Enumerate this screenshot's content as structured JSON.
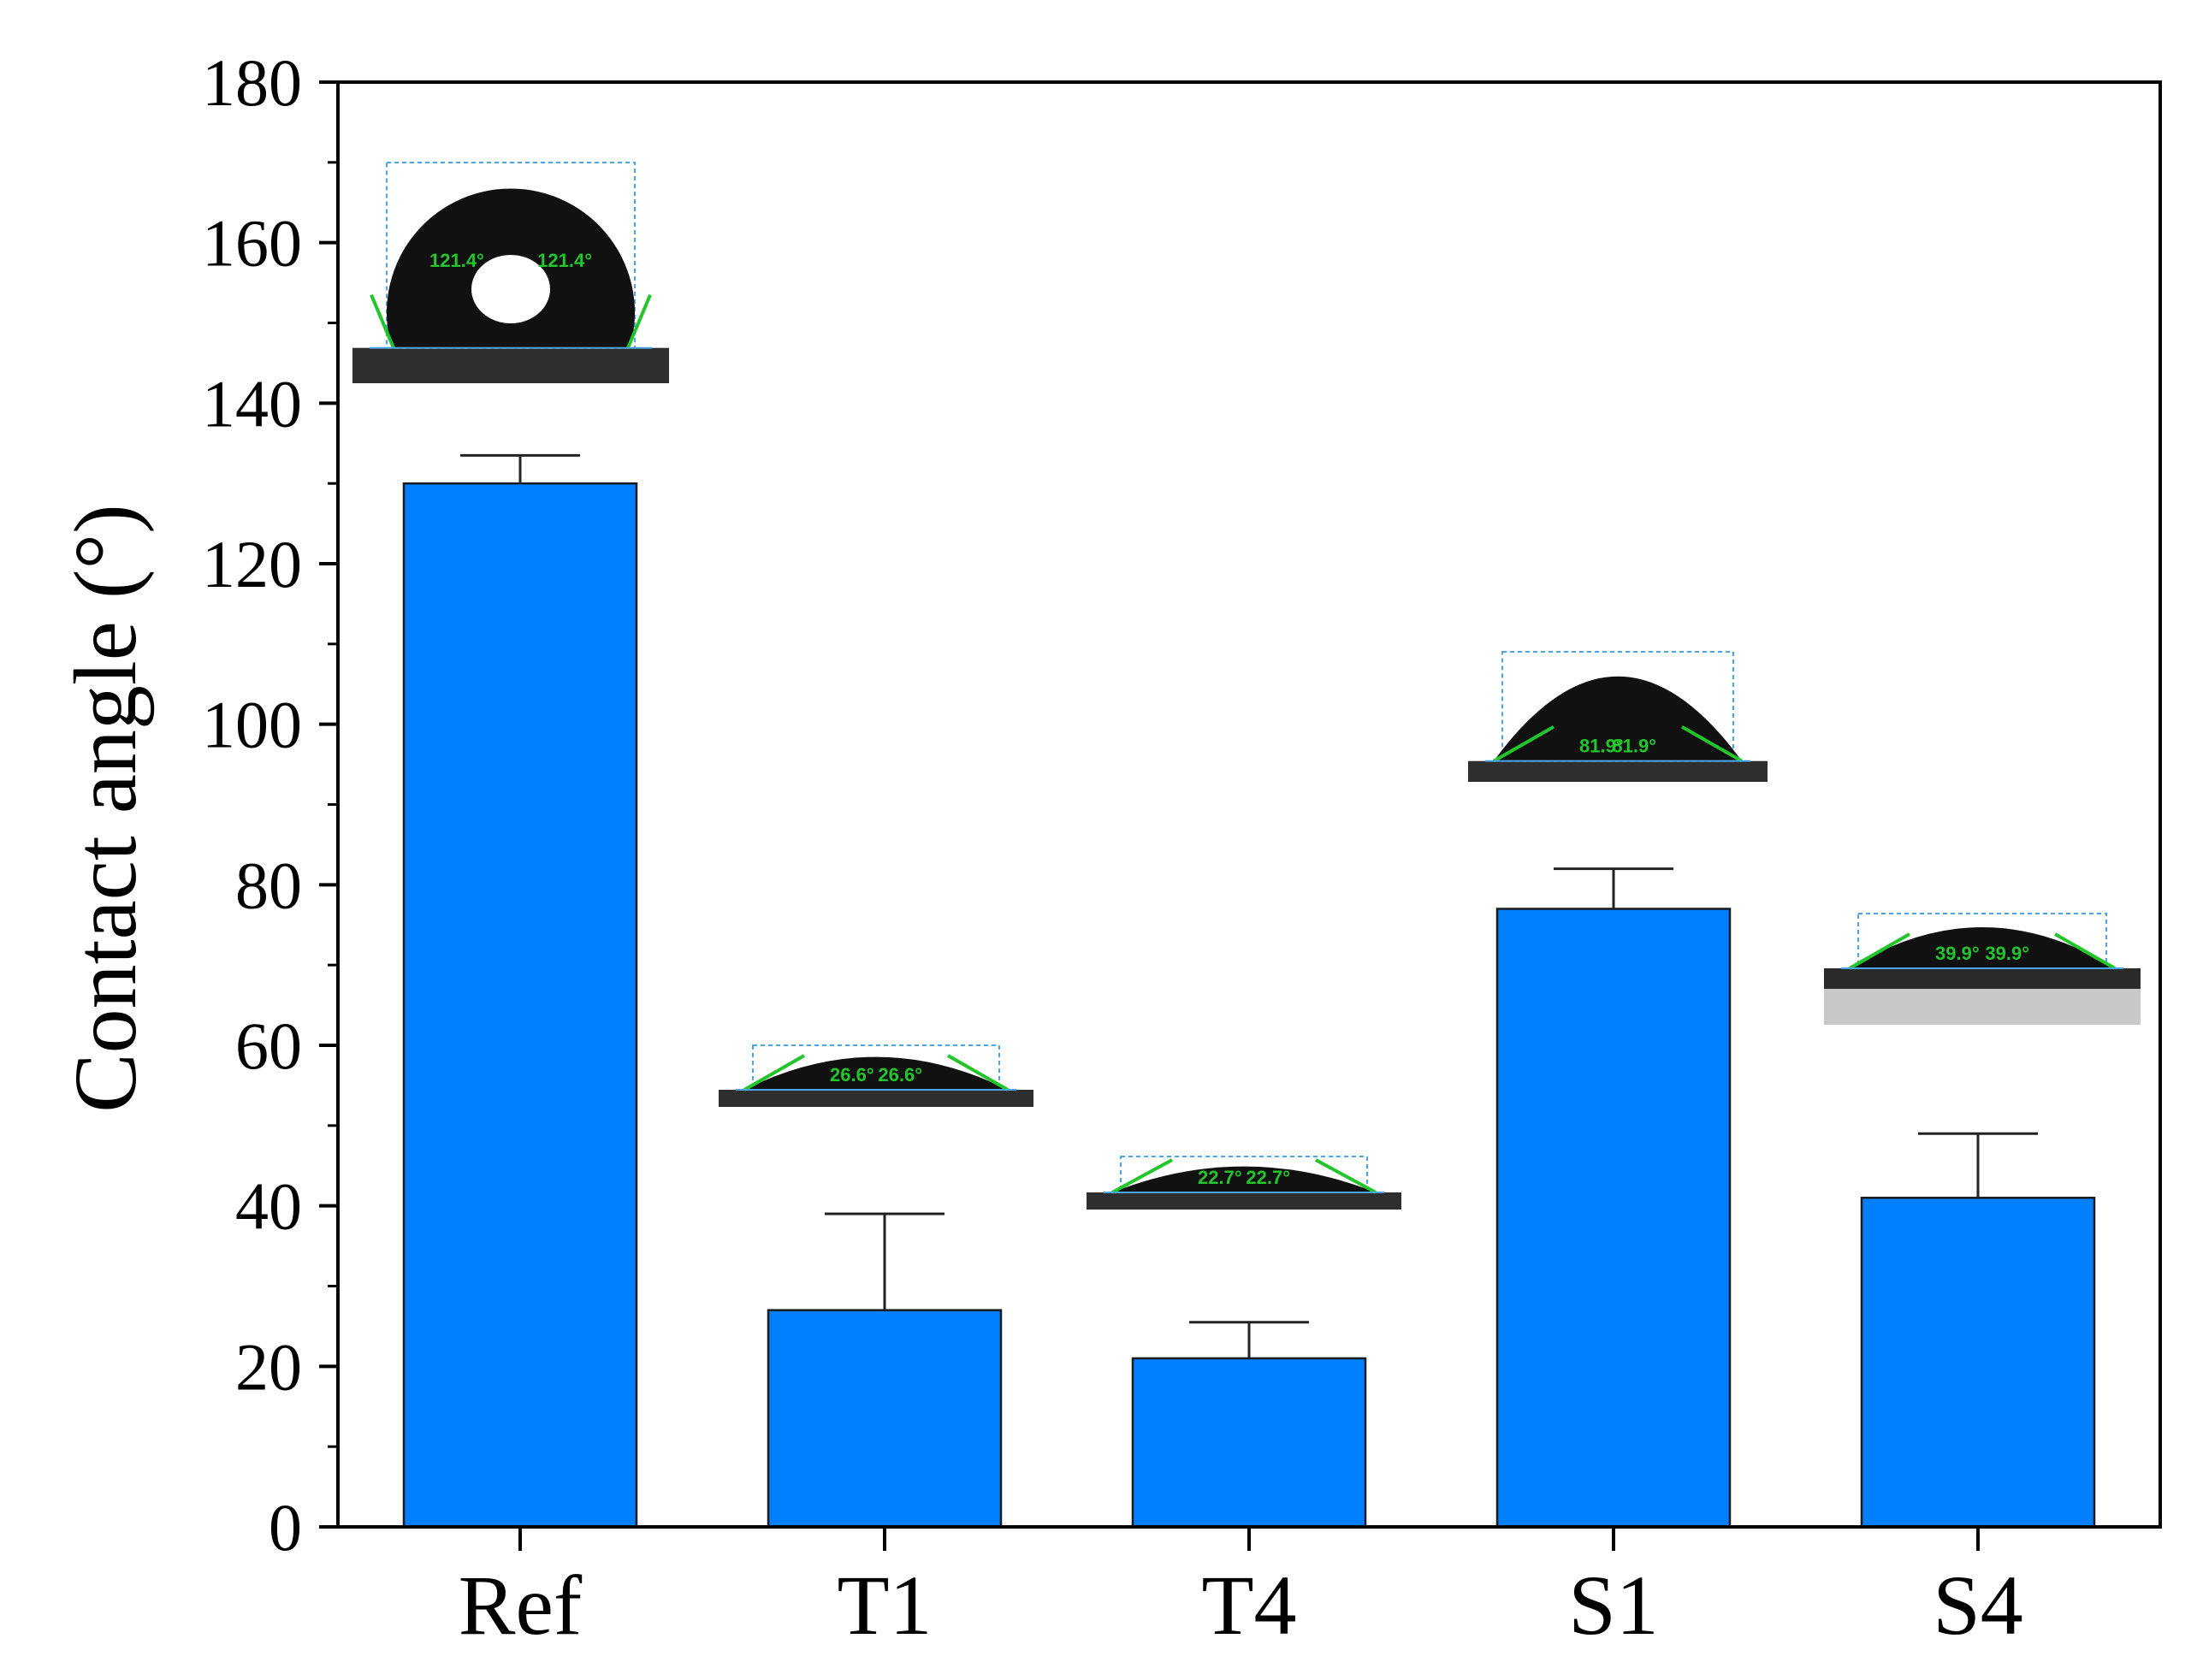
{
  "chart_data": {
    "type": "bar",
    "categories": [
      "Ref",
      "T1",
      "T4",
      "S1",
      "S4"
    ],
    "values": [
      130,
      27,
      21,
      77,
      41
    ],
    "errors": [
      3.5,
      12,
      4.5,
      5,
      8
    ],
    "ylabel": "Contact angle (°)",
    "ylim": [
      0,
      180
    ],
    "yticks": [
      0,
      20,
      40,
      60,
      80,
      100,
      120,
      140,
      160,
      180
    ],
    "bar_color": "#0080ff",
    "grid": false,
    "legend": "none"
  },
  "insets": [
    {
      "category": "Ref",
      "description_icon": "droplet-image",
      "angle_left": "121.4°",
      "angle_right": "121.4°"
    },
    {
      "category": "T1",
      "description_icon": "droplet-image",
      "angle_left": "26.6°",
      "angle_right": "26.6°"
    },
    {
      "category": "T4",
      "description_icon": "droplet-image",
      "angle_left": "22.7°",
      "angle_right": "22.7°"
    },
    {
      "category": "S1",
      "description_icon": "droplet-image",
      "angle_left": "81.9°",
      "angle_right": "81.9°"
    },
    {
      "category": "S4",
      "description_icon": "droplet-image",
      "angle_left": "39.9°",
      "angle_right": "39.9°"
    }
  ]
}
